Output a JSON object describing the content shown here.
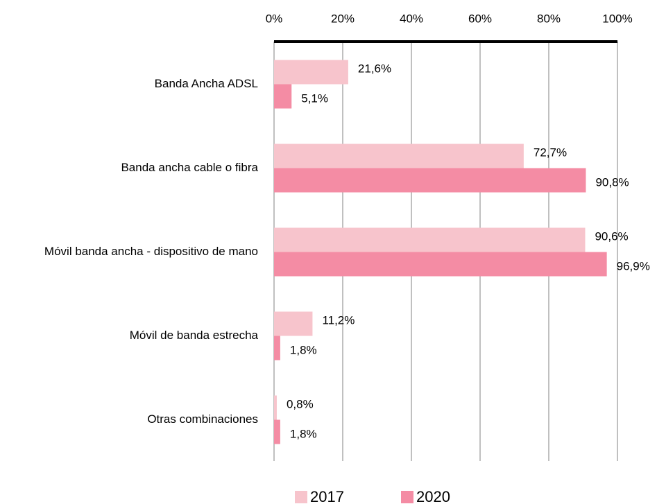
{
  "chart_data": {
    "type": "bar",
    "orientation": "horizontal",
    "categories": [
      "Banda Ancha ADSL",
      "Banda ancha cable o fibra",
      "Móvil banda ancha - dispositivo de mano",
      "Móvil de banda estrecha",
      "Otras combinaciones"
    ],
    "series": [
      {
        "name": "2017",
        "color": "#f7c4cc",
        "values": [
          21.6,
          72.7,
          90.6,
          11.2,
          0.8
        ],
        "value_labels": [
          "21,6%",
          "72,7%",
          "90,6%",
          "11,2%",
          "0,8%"
        ]
      },
      {
        "name": "2020",
        "color": "#f48ca4",
        "values": [
          5.1,
          90.8,
          96.9,
          1.8,
          1.8
        ],
        "value_labels": [
          "5,1%",
          "90,8%",
          "96,9%",
          "1,8%",
          "1,8%"
        ]
      }
    ],
    "xlim": [
      0,
      100
    ],
    "xticks": [
      {
        "value": 0,
        "label": "0%"
      },
      {
        "value": 20,
        "label": "20%"
      },
      {
        "value": 40,
        "label": "40%"
      },
      {
        "value": 60,
        "label": "60%"
      },
      {
        "value": 80,
        "label": "80%"
      },
      {
        "value": 100,
        "label": "100%"
      }
    ],
    "grid": true,
    "legend": "bottom"
  }
}
